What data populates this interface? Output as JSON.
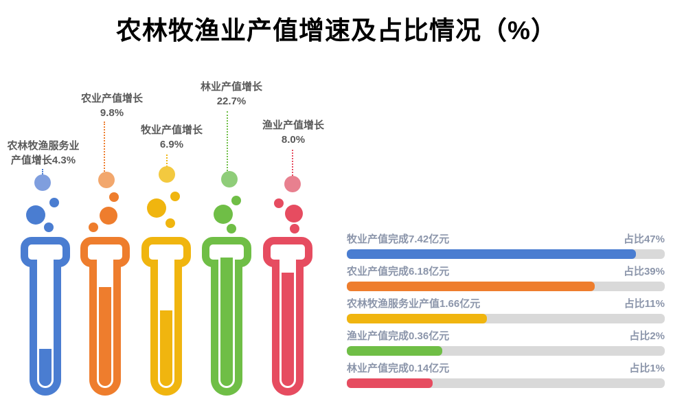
{
  "title": "农林牧渔业产值增速及占比情况（%）",
  "palette": {
    "title_color": "#000000",
    "callout_text_gray": "#595959",
    "bar_label_slate": "#8b95aa",
    "bar_track_gray": "#d9d9d9"
  },
  "tubes": [
    {
      "category": "农林牧渔服务业",
      "label_line1": "农林牧渔服务业",
      "label_line2": "产值增长4.3%",
      "growth_pct": 4.3,
      "color": "#4a7dd1",
      "light_color": "#7f9ede",
      "liquid_level": 0.29
    },
    {
      "category": "农业",
      "label_line1": "农业产值增长",
      "label_line2": "9.8%",
      "growth_pct": 9.8,
      "color": "#ee7d2d",
      "light_color": "#f2a76d",
      "liquid_level": 0.77
    },
    {
      "category": "牧业",
      "label_line1": "牧业产值增长",
      "label_line2": "6.9%",
      "growth_pct": 6.9,
      "color": "#f0b50f",
      "light_color": "#f3c93f",
      "liquid_level": 0.59
    },
    {
      "category": "林业",
      "label_line1": "林业产值增长",
      "label_line2": "22.7%",
      "growth_pct": 22.7,
      "color": "#6fbe46",
      "light_color": "#8fcd79",
      "liquid_level": 1.0
    },
    {
      "category": "渔业",
      "label_line1": "渔业产值增长",
      "label_line2": "8.0%",
      "growth_pct": 8.0,
      "color": "#e64c60",
      "light_color": "#e8808f",
      "liquid_level": 0.88
    }
  ],
  "bars": [
    {
      "label": "牧业产值完成7.42亿元",
      "share_label": "占比47%",
      "value_yi": 7.42,
      "share_pct": 47,
      "fill_fraction": 0.91,
      "color": "#4a7dd1"
    },
    {
      "label": "农业产值完成6.18亿元",
      "share_label": "占比39%",
      "value_yi": 6.18,
      "share_pct": 39,
      "fill_fraction": 0.78,
      "color": "#ee7d2d"
    },
    {
      "label": "农林牧渔服务业产值1.66亿元",
      "share_label": "占比11%",
      "value_yi": 1.66,
      "share_pct": 11,
      "fill_fraction": 0.44,
      "color": "#f0b50f"
    },
    {
      "label": "渔业产值完成0.36亿元",
      "share_label": "占比2%",
      "value_yi": 0.36,
      "share_pct": 2,
      "fill_fraction": 0.3,
      "color": "#6fbe46"
    },
    {
      "label": "林业产值完成0.14亿元",
      "share_label": "占比1%",
      "value_yi": 0.14,
      "share_pct": 1,
      "fill_fraction": 0.27,
      "color": "#e64c60"
    }
  ],
  "chart_data": [
    {
      "type": "bar",
      "subtype": "test-tube-pictograph",
      "title": "农林牧渔业产值增速及占比情况（%）",
      "series_name": "产值增长(%)",
      "categories": [
        "农林牧渔服务业",
        "农业",
        "牧业",
        "林业",
        "渔业"
      ],
      "values": [
        4.3,
        9.8,
        6.9,
        22.7,
        8.0
      ],
      "colors": [
        "#4a7dd1",
        "#ee7d2d",
        "#f0b50f",
        "#6fbe46",
        "#e64c60"
      ],
      "ylim": [
        0,
        25
      ],
      "grid": false,
      "legend_position": "none"
    },
    {
      "type": "bar",
      "orientation": "horizontal",
      "categories": [
        "牧业",
        "农业",
        "农林牧渔服务业",
        "渔业",
        "林业"
      ],
      "series": [
        {
          "name": "产值(亿元)",
          "values": [
            7.42,
            6.18,
            1.66,
            0.36,
            0.14
          ]
        },
        {
          "name": "占比(%)",
          "values": [
            47,
            39,
            11,
            2,
            1
          ]
        }
      ],
      "colors": [
        "#4a7dd1",
        "#ee7d2d",
        "#f0b50f",
        "#6fbe46",
        "#e64c60"
      ],
      "grid": false,
      "legend_position": "none"
    }
  ]
}
